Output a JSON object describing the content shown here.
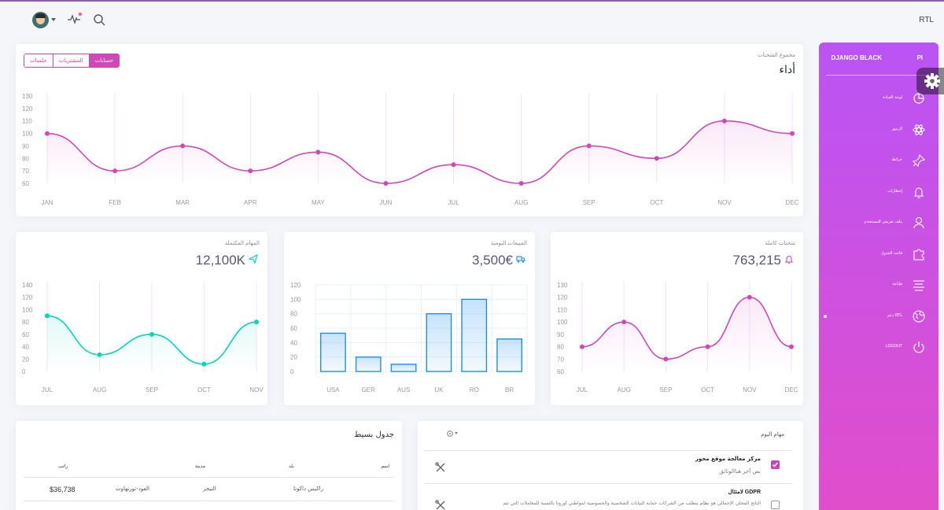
{
  "navbar": {
    "rtl_label": "RTL"
  },
  "sidebar": {
    "logo_mini": "PI",
    "logo_text": "DJANGO BLACK",
    "items": [
      {
        "label": "لوحة القيادة",
        "icon": "chart-pie-icon"
      },
      {
        "label": "الرموز",
        "icon": "atom-icon"
      },
      {
        "label": "خرائط",
        "icon": "pin-icon"
      },
      {
        "label": "إخطارات",
        "icon": "bell-icon"
      },
      {
        "label": "ملف تعريفي للمستخدم",
        "icon": "user-icon"
      },
      {
        "label": "قائمة الجدول",
        "icon": "puzzle-icon"
      },
      {
        "label": "طباعة",
        "icon": "align-center-icon"
      },
      {
        "label": "دعم RTL",
        "icon": "world-icon"
      },
      {
        "label": "LOGOUT",
        "icon": "power-icon"
      }
    ]
  },
  "main_chart": {
    "category": "مجموع الشحنات",
    "title": "أداء",
    "tabs": [
      "حسابات",
      "المشتريات",
      "جلسات"
    ],
    "active_tab": 0,
    "chart_data": {
      "type": "line",
      "categories": [
        "JAN",
        "FEB",
        "MAR",
        "APR",
        "MAY",
        "JUN",
        "JUL",
        "AUG",
        "SEP",
        "OCT",
        "NOV",
        "DEC"
      ],
      "values": [
        100,
        70,
        90,
        70,
        85,
        60,
        75,
        60,
        90,
        80,
        110,
        100
      ],
      "yticks": [
        60,
        70,
        80,
        90,
        100,
        110,
        120,
        130
      ],
      "ylim": [
        60,
        130
      ],
      "color": "#d048b6"
    }
  },
  "card_shipments": {
    "category": "شحنات كاملة",
    "value": "763,215",
    "icon": "bell-icon",
    "chart_data": {
      "type": "line",
      "categories": [
        "JUL",
        "AUG",
        "SEP",
        "OCT",
        "NOV",
        "DEC"
      ],
      "values": [
        80,
        100,
        70,
        80,
        120,
        80
      ],
      "yticks": [
        60,
        70,
        80,
        90,
        100,
        110,
        120,
        130
      ],
      "ylim": [
        60,
        130
      ],
      "color": "#d048b6"
    }
  },
  "card_sales": {
    "category": "المبيعات اليومية",
    "value": "3,500€",
    "icon": "delivery-icon",
    "chart_data": {
      "type": "bar",
      "categories": [
        "USA",
        "GER",
        "AUS",
        "UK",
        "RO",
        "BR"
      ],
      "values": [
        53,
        20,
        10,
        80,
        100,
        45
      ],
      "yticks": [
        0,
        20,
        40,
        60,
        80,
        100,
        120
      ],
      "ylim": [
        0,
        120
      ],
      "color": "#1f8ef1"
    }
  },
  "card_tasks": {
    "category": "المهام المكتملة",
    "value": "12,100K",
    "icon": "send-icon",
    "chart_data": {
      "type": "line",
      "categories": [
        "JUL",
        "AUG",
        "SEP",
        "OCT",
        "NOV"
      ],
      "values": [
        90,
        27,
        60,
        12,
        80
      ],
      "yticks": [
        0,
        20,
        40,
        60,
        80,
        100,
        120,
        140
      ],
      "ylim": [
        0,
        140
      ],
      "color": "#00d6b4"
    }
  },
  "simple_table": {
    "title": "جدول بسيط",
    "headers": [
      "اسم",
      "بلد",
      "مدينة",
      "راتب"
    ],
    "rows": [
      [
        "راكيس داكوتا",
        "النيجر",
        "العود-تورنهاوت",
        "$36,738"
      ]
    ]
  },
  "tasks": {
    "title": "مهام اليوم",
    "items": [
      {
        "title": "مركز معالجة موقع محور",
        "desc": "نص آخر هناالوثائق",
        "checked": true
      },
      {
        "title": "لامتثال GDPR",
        "desc": "الناتج المحلي الإجمالي هو نظام يتطلب من الشركات حماية البيانات الشخصية والخصوصية لمواطني أوروبا بالنسبة للمعاملات التي تتم",
        "checked": false
      }
    ]
  }
}
